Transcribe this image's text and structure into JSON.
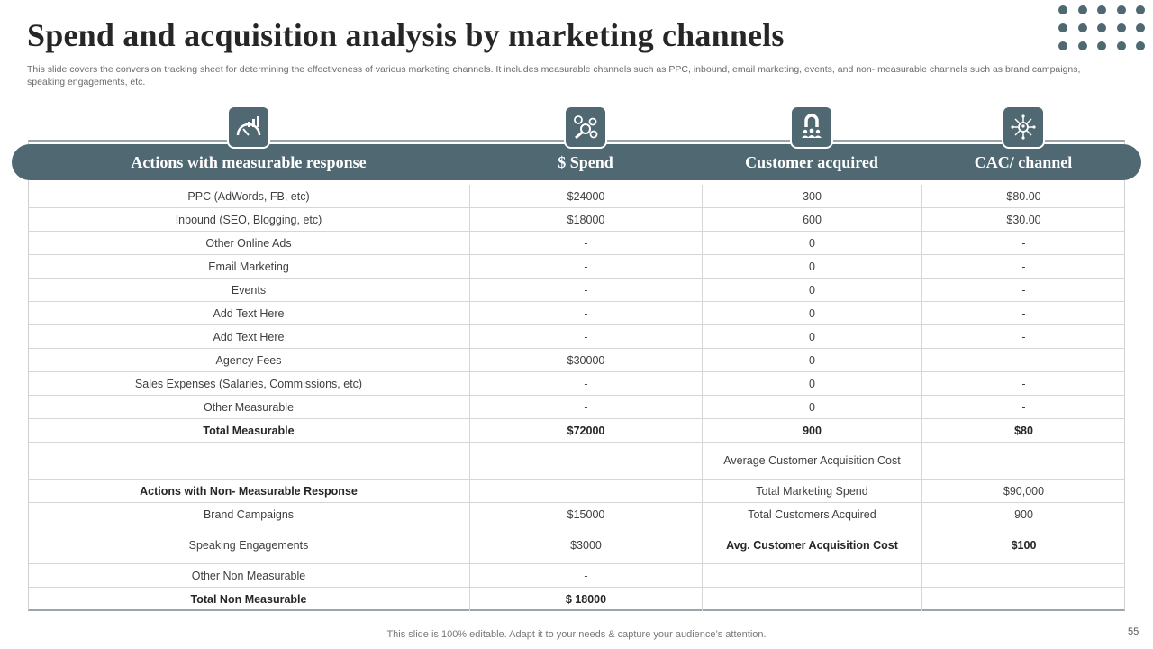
{
  "title": "Spend and acquisition analysis by marketing channels",
  "subtitle": "This slide covers the conversion tracking sheet for determining the effectiveness of various marketing channels. It includes measurable channels such as PPC, inbound, email marketing, events, and non- measurable channels such as brand campaigns, speaking engagements, etc.",
  "headers": [
    "Actions with measurable response",
    "$ Spend",
    "Customer acquired",
    "CAC/ channel"
  ],
  "icons": [
    "performance-gauge-icon",
    "money-analysis-icon",
    "customer-magnet-icon",
    "network-hub-icon"
  ],
  "rows": [
    [
      "PPC (AdWords, FB, etc)",
      "$24000",
      "300",
      "$80.00"
    ],
    [
      "Inbound (SEO, Blogging, etc)",
      "$18000",
      "600",
      "$30.00"
    ],
    [
      "Other Online Ads",
      "-",
      "0",
      "-"
    ],
    [
      "Email Marketing",
      "-",
      "0",
      "-"
    ],
    [
      "Events",
      "-",
      "0",
      "-"
    ],
    [
      "Add Text Here",
      "-",
      "0",
      "-"
    ],
    [
      "Add Text Here",
      "-",
      "0",
      "-"
    ],
    [
      "Agency Fees",
      "$30000",
      "0",
      "-"
    ],
    [
      "Sales Expenses (Salaries, Commissions, etc)",
      "-",
      "0",
      "-"
    ],
    [
      "Other Measurable",
      "-",
      "0",
      "-"
    ],
    [
      "Total Measurable",
      "$72000",
      "900",
      "$80"
    ],
    [
      "",
      "",
      "Average Customer Acquisition Cost",
      ""
    ],
    [
      "Actions with Non- Measurable Response",
      "",
      "Total Marketing Spend",
      "$90,000"
    ],
    [
      "Brand Campaigns",
      "$15000",
      "Total Customers Acquired",
      "900"
    ],
    [
      "Speaking Engagements",
      "$3000",
      "Avg. Customer Acquisition Cost",
      "$100"
    ],
    [
      "Other Non Measurable",
      "-",
      "",
      ""
    ],
    [
      "Total Non Measurable",
      "$ 18000",
      "",
      ""
    ]
  ],
  "footer": "This slide is 100% editable. Adapt it to your needs & capture your audience’s attention.",
  "page_number": "55",
  "colors": {
    "header": "#4f6872",
    "title": "#262626",
    "border": "#d6d6d6"
  }
}
